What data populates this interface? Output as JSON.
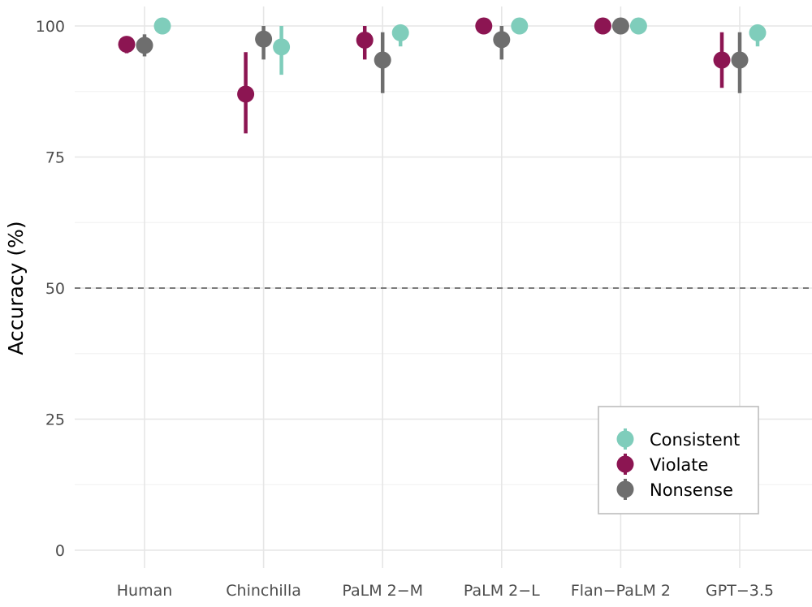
{
  "chart_data": {
    "type": "scatter",
    "title": "",
    "xlabel": "",
    "ylabel": "Accuracy (%)",
    "ylim": [
      0,
      100
    ],
    "y_ticks": [
      0,
      25,
      50,
      75,
      100
    ],
    "categories": [
      "Human",
      "Chinchilla",
      "PaLM 2−M",
      "PaLM 2−L",
      "Flan−PaLM 2",
      "GPT−3.5"
    ],
    "reference_line": {
      "y": 50,
      "style": "dashed"
    },
    "grid": true,
    "legend_position": "bottom-right",
    "series": [
      {
        "name": "Violate",
        "color": "#8c1552",
        "values": [
          96.5,
          87,
          97.3,
          100,
          100,
          93.5
        ],
        "lower": [
          94.8,
          79.5,
          93.6,
          100,
          100,
          88.2
        ],
        "upper": [
          97.3,
          95,
          100,
          100,
          100,
          98.8
        ]
      },
      {
        "name": "Nonsense",
        "color": "#6e6e6e",
        "values": [
          96.3,
          97.5,
          93.5,
          97.4,
          100,
          93.5
        ],
        "lower": [
          94.2,
          93.6,
          87.2,
          93.6,
          100,
          87.2
        ],
        "upper": [
          98.4,
          100,
          98.8,
          100,
          100,
          98.8
        ]
      },
      {
        "name": "Consistent",
        "color": "#7fcdbb",
        "values": [
          100,
          96,
          98.7,
          100,
          100,
          98.7
        ],
        "lower": [
          100,
          90.7,
          96.1,
          100,
          100,
          96.1
        ],
        "upper": [
          100,
          100,
          100,
          100,
          100,
          100
        ]
      }
    ],
    "legend": [
      "Consistent",
      "Violate",
      "Nonsense"
    ]
  }
}
